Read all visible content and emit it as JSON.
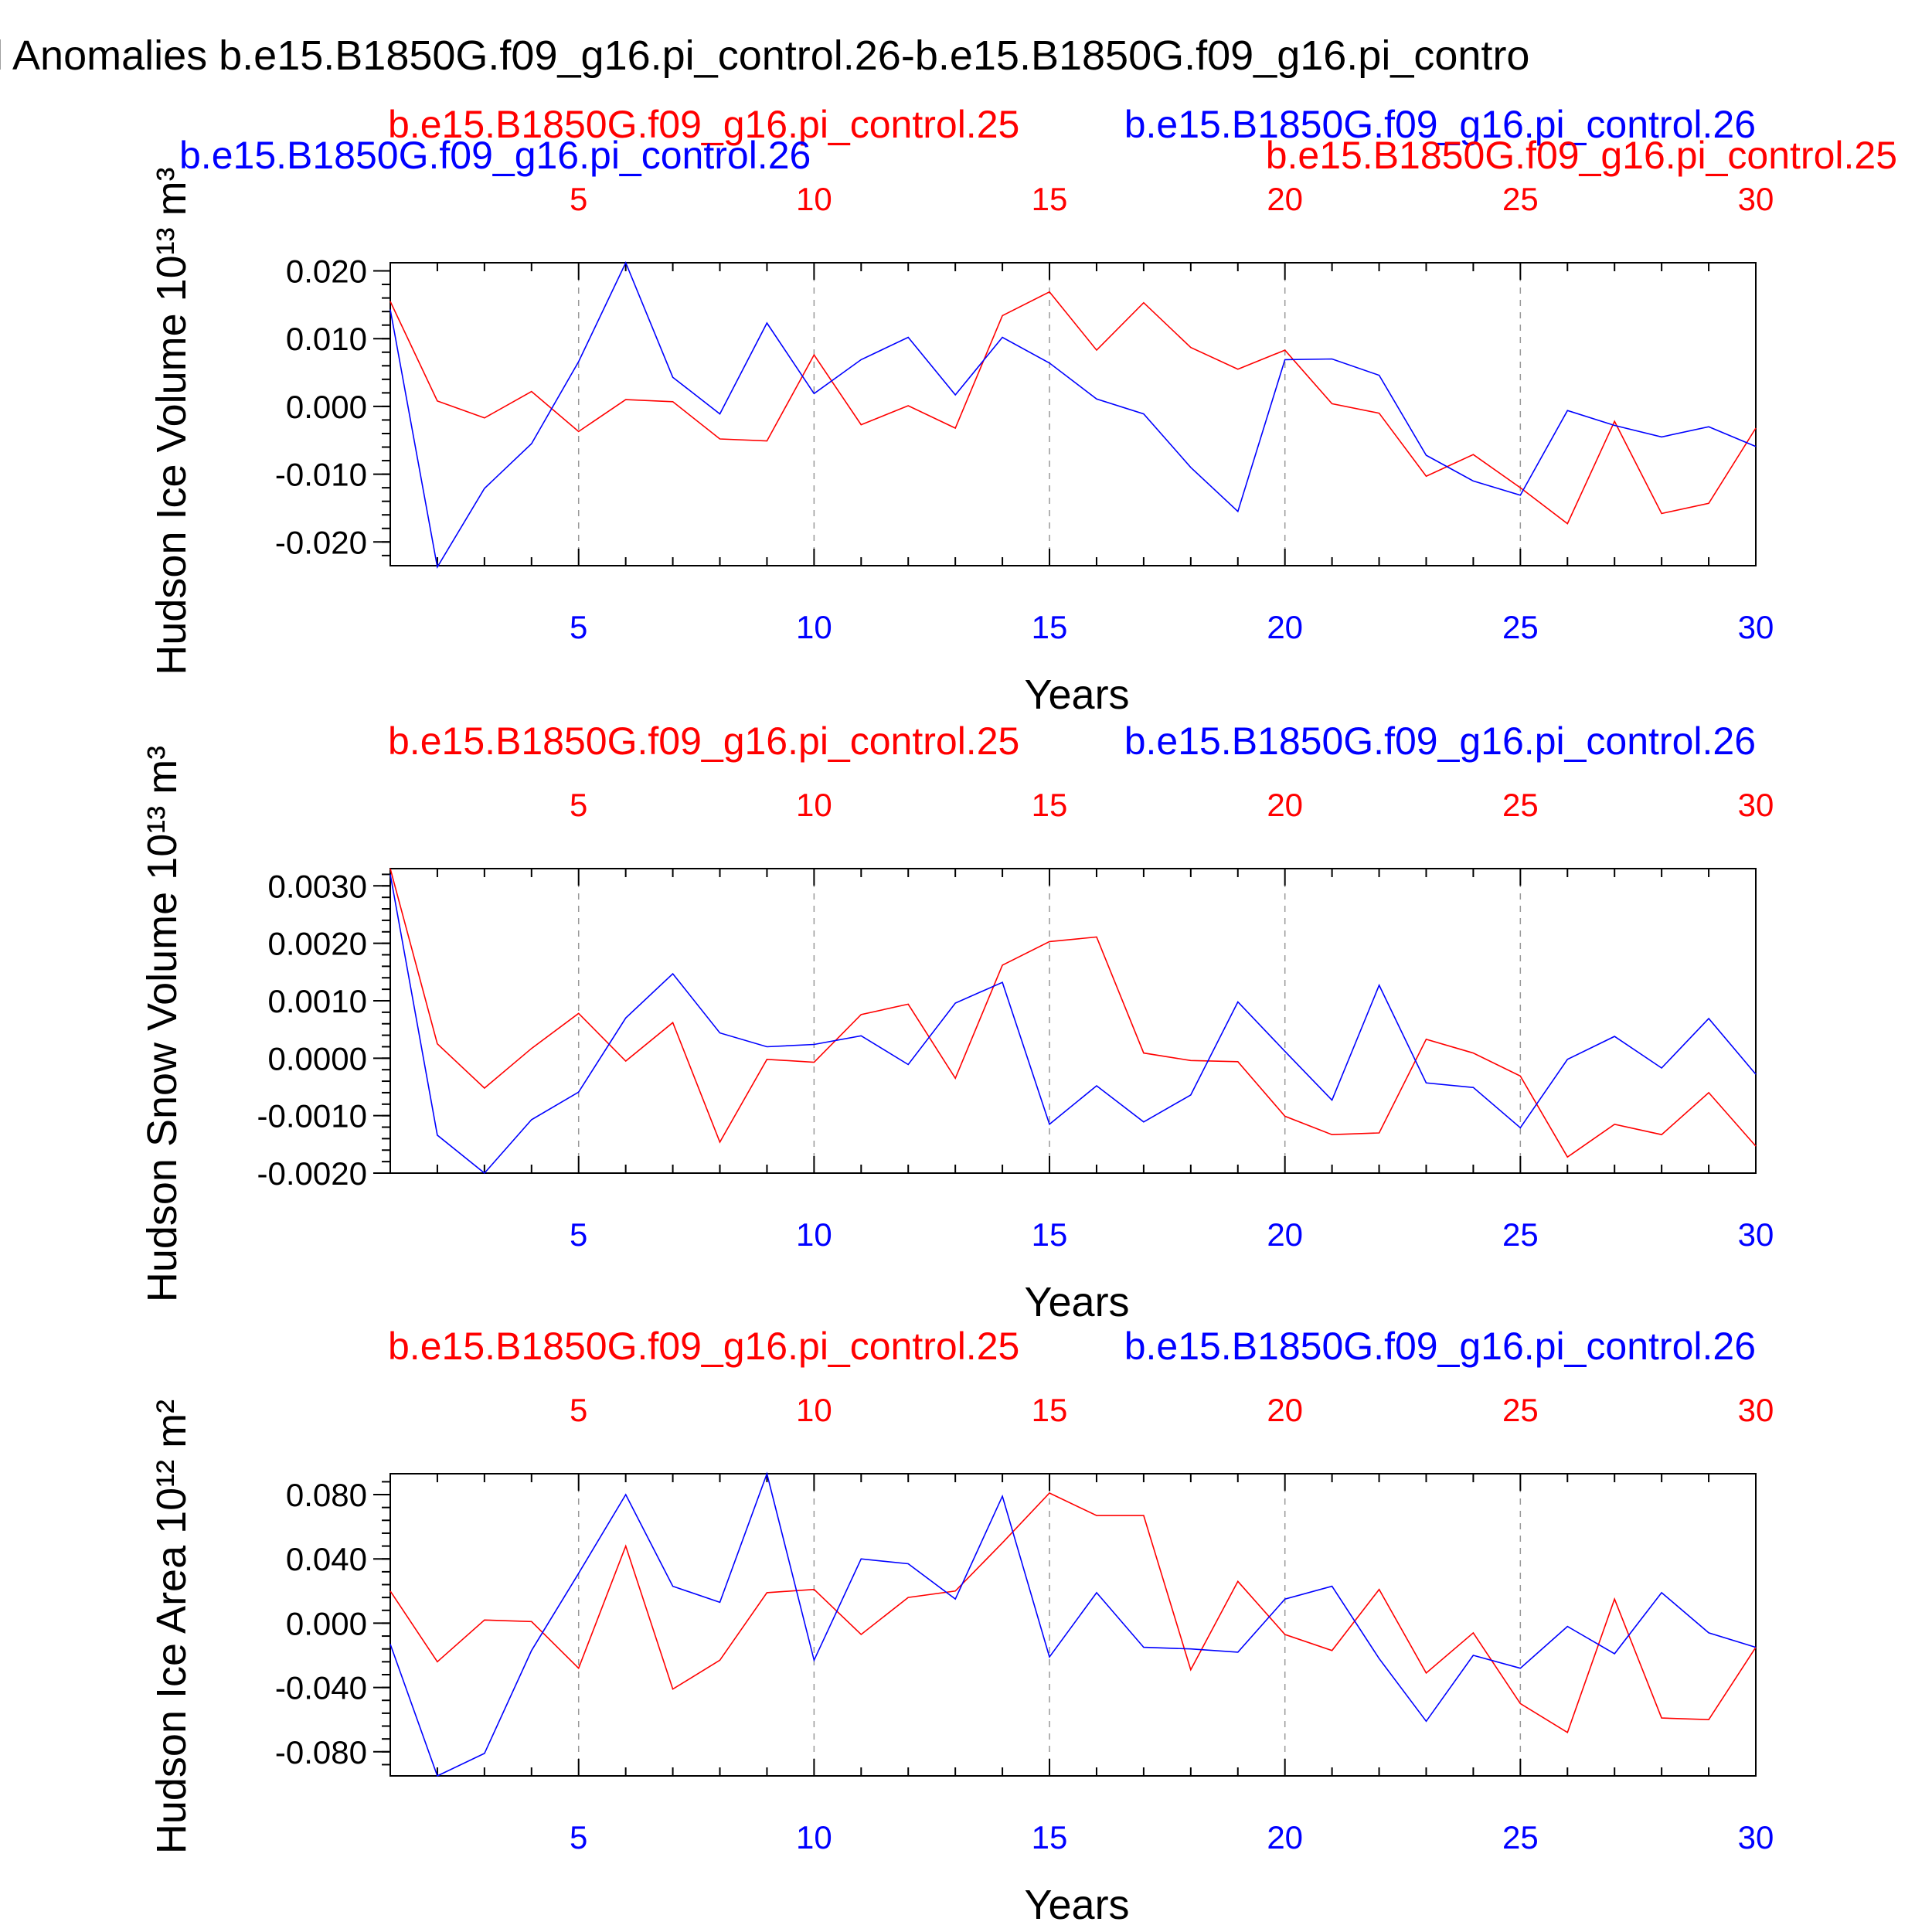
{
  "title": "l Anomalies b.e15.B1850G.f09_g16.pi_control.26-b.e15.B1850G.f09_g16.pi_contro",
  "colors": {
    "red": "#ff0000",
    "blue": "#0000ff",
    "axis": "#000000",
    "grid": "#999999"
  },
  "chart_data": [
    {
      "type": "line",
      "ylabel": "Hudson Ice Volume 10¹³ m³",
      "xlabel": "Years",
      "xlim": [
        1,
        30
      ],
      "ylim": [
        -0.0235,
        0.0212
      ],
      "ytick_values": [
        -0.02,
        -0.01,
        0.0,
        0.01,
        0.02
      ],
      "ytick_labels": [
        "-0.020",
        "-0.010",
        "0.000",
        "0.010",
        "0.020"
      ],
      "xtick_values": [
        5,
        10,
        15,
        20,
        25,
        30
      ],
      "xtick_labels": [
        "5",
        "10",
        "15",
        "20",
        "25",
        "30"
      ],
      "legend": [
        {
          "name": "b.e15.B1850G.f09_g16.pi_control.25",
          "color": "red"
        },
        {
          "name": "b.e15.B1850G.f09_g16.pi_control.26",
          "color": "blue"
        },
        {
          "name": "b.e15.B1850G.f09_g16.pi_control.26",
          "color": "blue"
        },
        {
          "name": "b.e15.B1850G.f09_g16.pi_control.25",
          "color": "red"
        }
      ],
      "series": [
        {
          "name": "b.e15.B1850G.f09_g16.pi_control.25",
          "color": "red",
          "x": [
            1,
            2,
            3,
            4,
            5,
            6,
            7,
            8,
            9,
            10,
            11,
            12,
            13,
            14,
            15,
            16,
            17,
            18,
            19,
            20,
            21,
            22,
            23,
            24,
            25,
            26,
            27,
            28,
            29,
            30
          ],
          "values": [
            0.0155,
            0.0008,
            -0.0017,
            0.0022,
            -0.0037,
            0.001,
            0.0007,
            -0.0048,
            -0.0051,
            0.0076,
            -0.0027,
            0.0001,
            -0.0032,
            0.0134,
            0.0169,
            0.0083,
            0.0153,
            0.0087,
            0.0055,
            0.0083,
            0.0004,
            -0.001,
            -0.0103,
            -0.0071,
            -0.012,
            -0.0173,
            -0.0022,
            -0.0158,
            -0.0143,
            -0.0032
          ]
        },
        {
          "name": "b.e15.B1850G.f09_g16.pi_control.26",
          "color": "blue",
          "x": [
            1,
            2,
            3,
            4,
            5,
            6,
            7,
            8,
            9,
            10,
            11,
            12,
            13,
            14,
            15,
            16,
            17,
            18,
            19,
            20,
            21,
            22,
            23,
            24,
            25,
            26,
            27,
            28,
            29,
            30
          ],
          "values": [
            0.0143,
            -0.0237,
            -0.0121,
            -0.0055,
            0.0066,
            0.0212,
            0.0043,
            -0.0011,
            0.0123,
            0.0019,
            0.0069,
            0.0102,
            0.0017,
            0.0102,
            0.0064,
            0.0011,
            -0.0011,
            -0.009,
            -0.0155,
            0.0069,
            0.007,
            0.0046,
            -0.0072,
            -0.011,
            -0.0131,
            -0.0006,
            -0.0028,
            -0.0045,
            -0.003,
            -0.0059
          ]
        }
      ]
    },
    {
      "type": "line",
      "ylabel": "Hudson Snow Volume 10¹³ m³",
      "xlabel": "Years",
      "xlim": [
        1,
        30
      ],
      "ylim": [
        -0.002,
        0.0033
      ],
      "ytick_values": [
        -0.002,
        -0.001,
        0.0,
        0.001,
        0.002,
        0.003
      ],
      "ytick_labels": [
        "-0.0020",
        "-0.0010",
        "0.0000",
        "0.0010",
        "0.0020",
        "0.0030"
      ],
      "xtick_values": [
        5,
        10,
        15,
        20,
        25,
        30
      ],
      "xtick_labels": [
        "5",
        "10",
        "15",
        "20",
        "25",
        "30"
      ],
      "legend": [
        {
          "name": "b.e15.B1850G.f09_g16.pi_control.25",
          "color": "red"
        },
        {
          "name": "b.e15.B1850G.f09_g16.pi_control.26",
          "color": "blue"
        }
      ],
      "series": [
        {
          "name": "b.e15.B1850G.f09_g16.pi_control.25",
          "color": "red",
          "x": [
            1,
            2,
            3,
            4,
            5,
            6,
            7,
            8,
            9,
            10,
            11,
            12,
            13,
            14,
            15,
            16,
            17,
            18,
            19,
            20,
            21,
            22,
            23,
            24,
            25,
            26,
            27,
            28,
            29,
            30
          ],
          "values": [
            0.0033,
            0.00025,
            -0.00052,
            0.00017,
            0.00078,
            -5e-05,
            0.00062,
            -0.00146,
            -2e-05,
            -7e-05,
            0.00076,
            0.00094,
            -0.00035,
            0.00162,
            0.00203,
            0.00211,
            9e-05,
            -4e-05,
            -6e-05,
            -0.00101,
            -0.00133,
            -0.0013,
            0.00033,
            9e-05,
            -0.00031,
            -0.00172,
            -0.00115,
            -0.00133,
            -0.0006,
            -0.00153
          ]
        },
        {
          "name": "b.e15.B1850G.f09_g16.pi_control.26",
          "color": "blue",
          "x": [
            1,
            2,
            3,
            4,
            5,
            6,
            7,
            8,
            9,
            10,
            11,
            12,
            13,
            14,
            15,
            16,
            17,
            18,
            19,
            20,
            21,
            22,
            23,
            24,
            25,
            26,
            27,
            28,
            29,
            30
          ],
          "values": [
            0.0032,
            -0.00134,
            -0.002,
            -0.00107,
            -0.00059,
            0.0007,
            0.00147,
            0.00044,
            0.0002,
            0.00024,
            0.00039,
            -0.00011,
            0.00096,
            0.00132,
            -0.00115,
            -0.00048,
            -0.00111,
            -0.00064,
            0.00098,
            0.00012,
            -0.00073,
            0.00127,
            -0.00043,
            -0.00051,
            -0.00121,
            -2e-05,
            0.00038,
            -0.00017,
            0.00069,
            -0.00028
          ]
        }
      ]
    },
    {
      "type": "line",
      "ylabel": "Hudson Ice Area 10¹² m²",
      "xlabel": "Years",
      "xlim": [
        1,
        30
      ],
      "ylim": [
        -0.095,
        0.093
      ],
      "ytick_values": [
        -0.08,
        -0.04,
        0.0,
        0.04,
        0.08
      ],
      "ytick_labels": [
        "-0.080",
        "-0.040",
        "0.000",
        "0.040",
        "0.080"
      ],
      "xtick_values": [
        5,
        10,
        15,
        20,
        25,
        30
      ],
      "xtick_labels": [
        "5",
        "10",
        "15",
        "20",
        "25",
        "30"
      ],
      "legend": [
        {
          "name": "b.e15.B1850G.f09_g16.pi_control.25",
          "color": "red"
        },
        {
          "name": "b.e15.B1850G.f09_g16.pi_control.26",
          "color": "blue"
        }
      ],
      "series": [
        {
          "name": "b.e15.B1850G.f09_g16.pi_control.25",
          "color": "red",
          "x": [
            1,
            2,
            3,
            4,
            5,
            6,
            7,
            8,
            9,
            10,
            11,
            12,
            13,
            14,
            15,
            16,
            17,
            18,
            19,
            20,
            21,
            22,
            23,
            24,
            25,
            26,
            27,
            28,
            29,
            30
          ],
          "values": [
            0.02,
            -0.024,
            0.002,
            0.001,
            -0.028,
            0.048,
            -0.041,
            -0.023,
            0.019,
            0.021,
            -0.007,
            0.016,
            0.02,
            0.05,
            0.081,
            0.067,
            0.067,
            -0.029,
            0.026,
            -0.007,
            -0.017,
            0.021,
            -0.031,
            -0.006,
            -0.05,
            -0.068,
            0.015,
            -0.059,
            -0.06,
            -0.015
          ]
        },
        {
          "name": "b.e15.B1850G.f09_g16.pi_control.26",
          "color": "blue",
          "x": [
            1,
            2,
            3,
            4,
            5,
            6,
            7,
            8,
            9,
            10,
            11,
            12,
            13,
            14,
            15,
            16,
            17,
            18,
            19,
            20,
            21,
            22,
            23,
            24,
            25,
            26,
            27,
            28,
            29,
            30
          ],
          "values": [
            -0.013,
            -0.095,
            -0.081,
            -0.017,
            0.031,
            0.08,
            0.023,
            0.013,
            0.093,
            -0.023,
            0.04,
            0.037,
            0.015,
            0.079,
            -0.021,
            0.019,
            -0.015,
            -0.016,
            -0.018,
            0.015,
            0.023,
            -0.022,
            -0.061,
            -0.02,
            -0.028,
            -0.002,
            -0.019,
            0.019,
            -0.006,
            -0.015
          ]
        }
      ]
    }
  ]
}
